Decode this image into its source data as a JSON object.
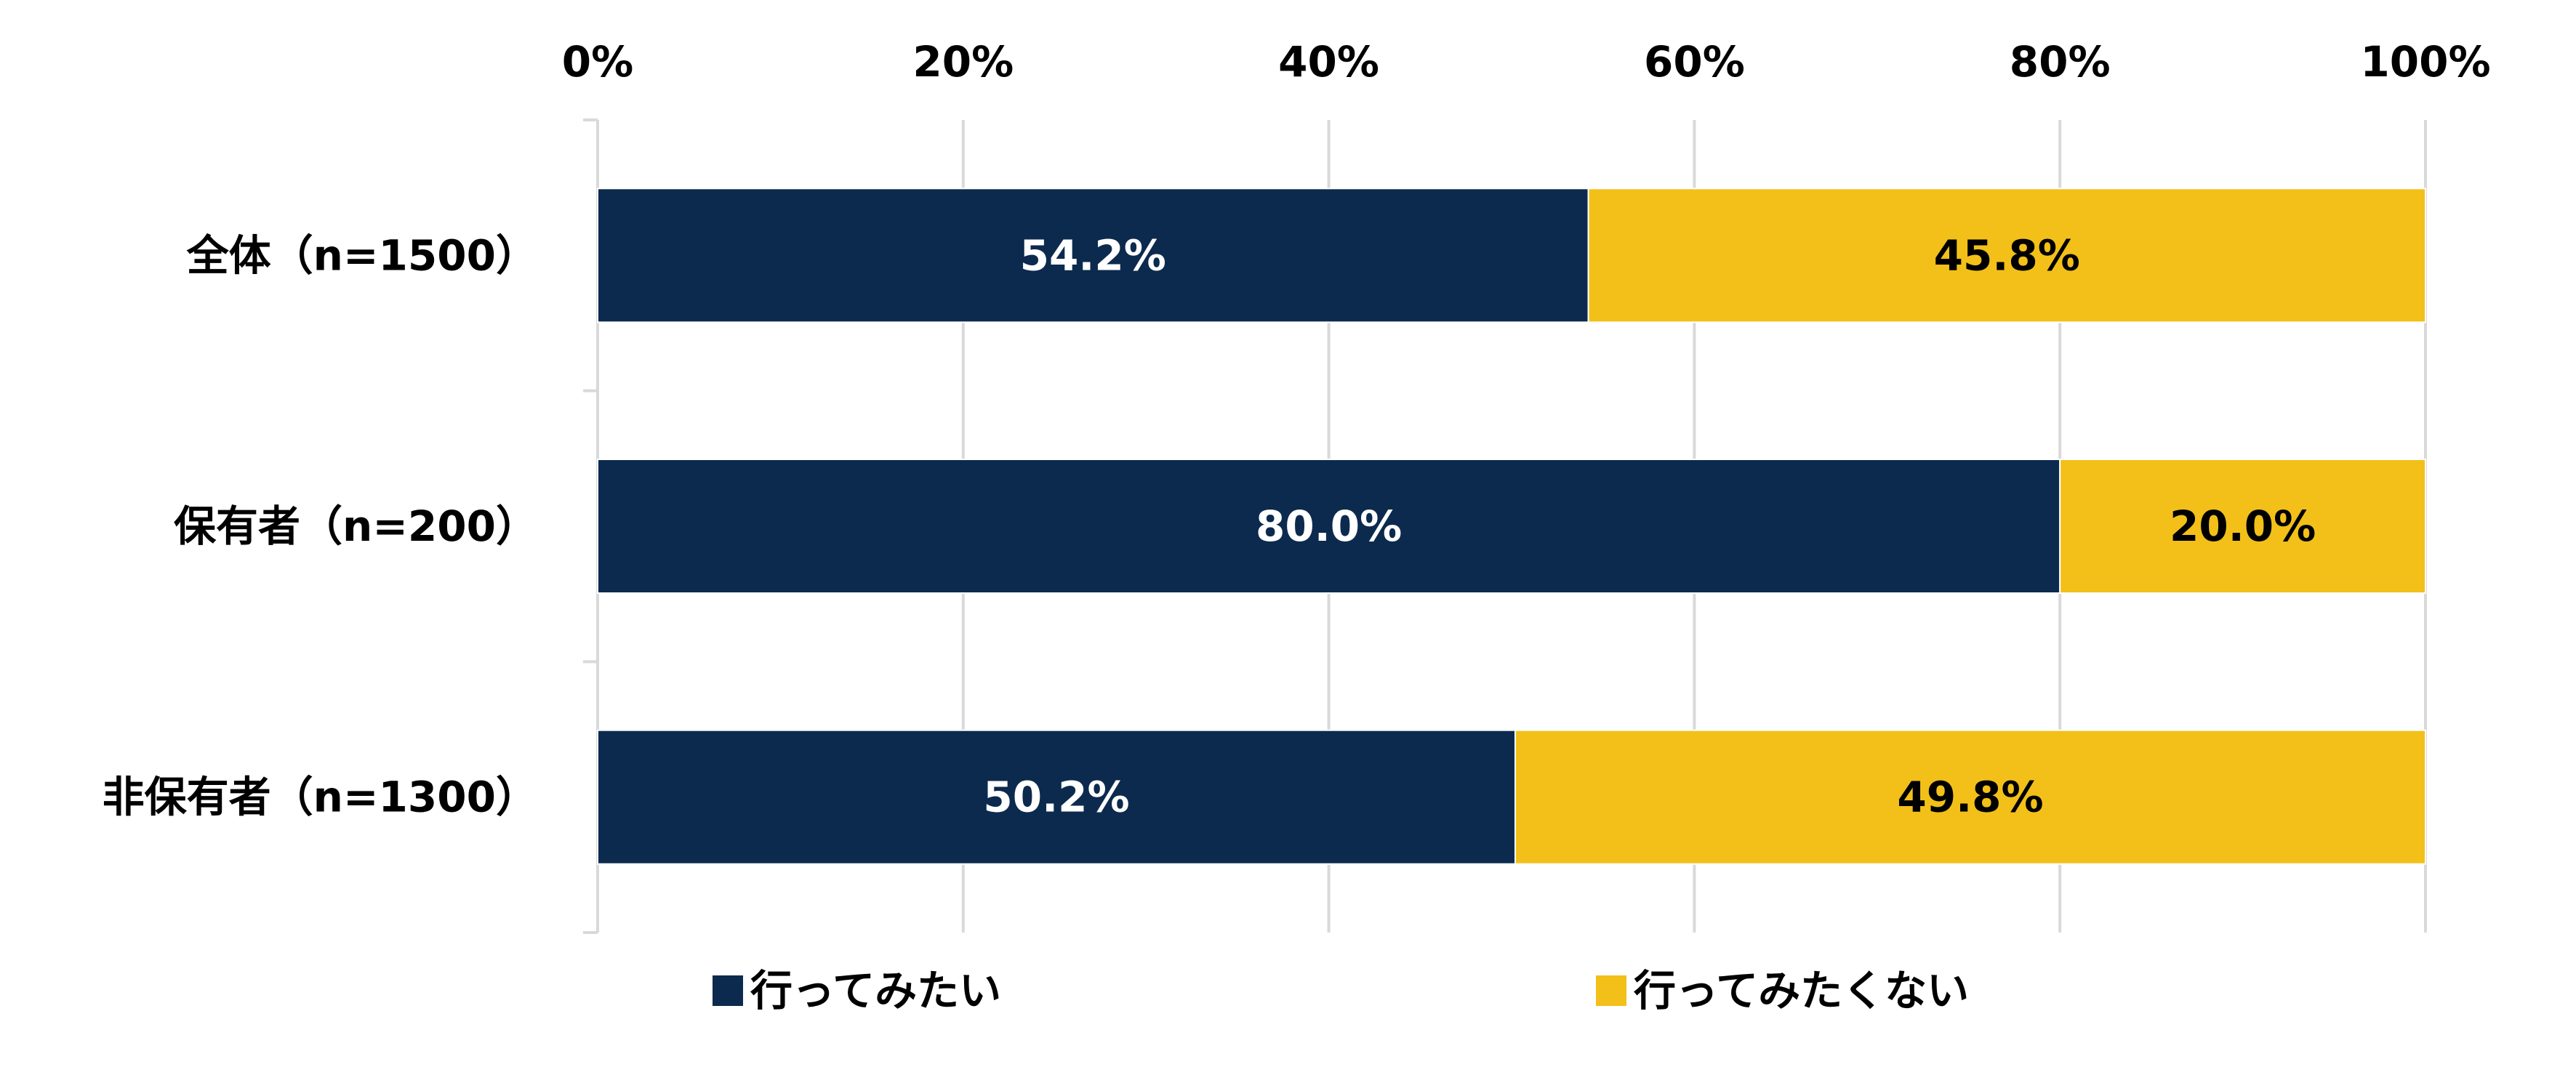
{
  "chart_data": {
    "type": "bar",
    "orientation": "horizontal",
    "stacked": "percent",
    "categories": [
      "全体（n=1500）",
      "保有者（n=200）",
      "非保有者（n=1300）"
    ],
    "series": [
      {
        "name": "行ってみたい",
        "values": [
          54.2,
          80.0,
          50.2
        ],
        "labels": [
          "54.2%",
          "80.0%",
          "50.2%"
        ],
        "color": "#0c2a4e",
        "label_color": "#ffffff"
      },
      {
        "name": "行ってみたくない",
        "values": [
          45.8,
          20.0,
          49.8
        ],
        "labels": [
          "45.8%",
          "20.0%",
          "49.8%"
        ],
        "color": "#f2c018",
        "label_color": "#000000"
      }
    ],
    "xlim": [
      0,
      100
    ],
    "xticks": [
      0,
      20,
      40,
      60,
      80,
      100
    ],
    "xtick_labels": [
      "0%",
      "20%",
      "40%",
      "60%",
      "80%",
      "100%"
    ],
    "x_axis_position": "top",
    "grid": true,
    "grid_color": "#d9d9d9",
    "legend_position": "bottom"
  }
}
